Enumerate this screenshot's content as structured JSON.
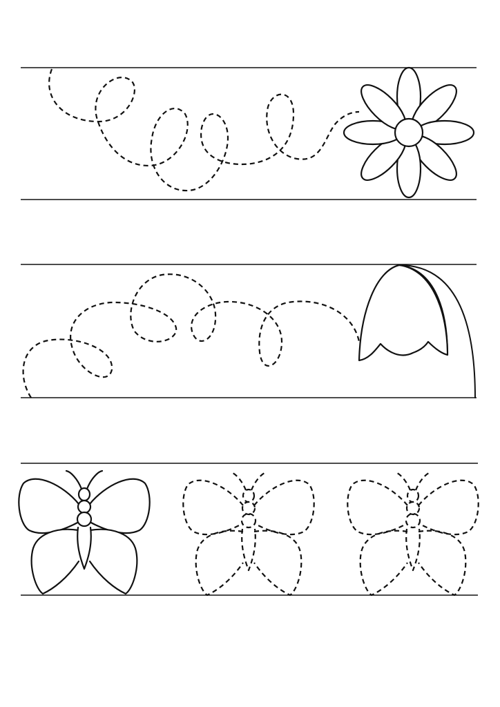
{
  "worksheet": {
    "rows": [
      {
        "guide": "dashed-loops",
        "target": "flower-icon"
      },
      {
        "guide": "dashed-loops",
        "target": "tulip-icon"
      },
      {
        "guide": "butterflies",
        "solid_count": 1,
        "dashed_count": 2,
        "target": "butterfly-icon"
      }
    ],
    "colors": {
      "ink": "#111111",
      "paper": "#ffffff"
    }
  }
}
